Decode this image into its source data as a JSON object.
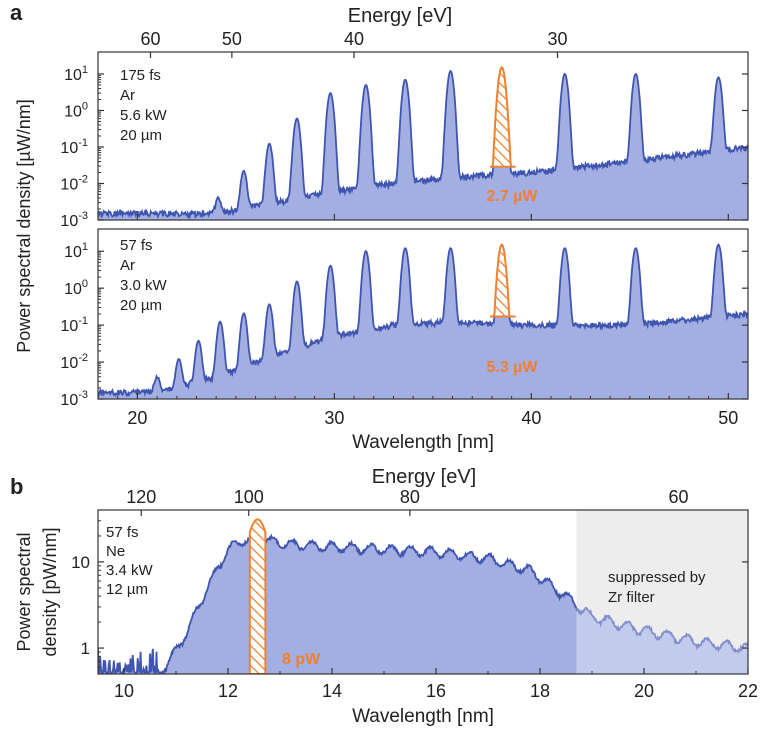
{
  "chart_data": [
    {
      "type": "area",
      "panel_label": "a",
      "top_axis_label": "Energy [eV]",
      "top_axis_ticks": [
        60,
        50,
        40,
        30
      ],
      "xlabel": "Wavelength [nm]",
      "ylabel": "Power spectral density [µW/nm]",
      "xlim": [
        18,
        51
      ],
      "xticks": [
        20,
        30,
        40,
        50
      ],
      "y_scale": "log",
      "ylim": [
        0.001,
        40
      ],
      "yticks": [
        {
          "base": "10",
          "exp": "1"
        },
        {
          "base": "10",
          "exp": "0"
        },
        {
          "base": "10",
          "exp": "-1"
        },
        {
          "base": "10",
          "exp": "-2"
        },
        {
          "base": "10",
          "exp": "-3"
        }
      ],
      "colors": {
        "spectrum": "#3f55b0",
        "fill": "#a3afe3",
        "highlight": "#f08030"
      },
      "subplots": [
        {
          "annotation": [
            "175 fs",
            "Ar",
            "5.6 kW",
            "20 µm"
          ],
          "highlight_label": "2.7 µW",
          "highlight_range": [
            37.9,
            39.2
          ],
          "baseline": [
            [
              18,
              0.0015
            ],
            [
              24,
              0.0015
            ],
            [
              27,
              0.003
            ],
            [
              30,
              0.006
            ],
            [
              33,
              0.01
            ],
            [
              36,
              0.015
            ],
            [
              40,
              0.02
            ],
            [
              45,
              0.04
            ],
            [
              51,
              0.1
            ]
          ],
          "peaks": [
            {
              "x": 24.1,
              "y": 0.0025
            },
            {
              "x": 25.4,
              "y": 0.02
            },
            {
              "x": 26.7,
              "y": 0.12
            },
            {
              "x": 28.1,
              "y": 0.6
            },
            {
              "x": 29.8,
              "y": 3.0
            },
            {
              "x": 31.6,
              "y": 5.0
            },
            {
              "x": 33.6,
              "y": 7.0
            },
            {
              "x": 35.9,
              "y": 12.0
            },
            {
              "x": 38.5,
              "y": 15.0
            },
            {
              "x": 41.7,
              "y": 10.0
            },
            {
              "x": 45.3,
              "y": 10.0
            },
            {
              "x": 49.5,
              "y": 8.0
            }
          ]
        },
        {
          "annotation": [
            "57 fs",
            "Ar",
            "3.0 kW",
            "20 µm"
          ],
          "highlight_label": "5.3 µW",
          "highlight_range": [
            37.9,
            39.2
          ],
          "baseline": [
            [
              18,
              0.0015
            ],
            [
              21,
              0.0015
            ],
            [
              24,
              0.004
            ],
            [
              27,
              0.015
            ],
            [
              30,
              0.05
            ],
            [
              33,
              0.1
            ],
            [
              36,
              0.12
            ],
            [
              40,
              0.1
            ],
            [
              45,
              0.1
            ],
            [
              51,
              0.2
            ]
          ],
          "peaks": [
            {
              "x": 21.0,
              "y": 0.0025
            },
            {
              "x": 22.1,
              "y": 0.01
            },
            {
              "x": 23.1,
              "y": 0.035
            },
            {
              "x": 24.2,
              "y": 0.12
            },
            {
              "x": 25.4,
              "y": 0.2
            },
            {
              "x": 26.7,
              "y": 0.35
            },
            {
              "x": 28.1,
              "y": 1.5
            },
            {
              "x": 29.8,
              "y": 4.0
            },
            {
              "x": 31.6,
              "y": 10.0
            },
            {
              "x": 33.6,
              "y": 12.0
            },
            {
              "x": 35.9,
              "y": 12.0
            },
            {
              "x": 38.5,
              "y": 15.0
            },
            {
              "x": 41.7,
              "y": 12.0
            },
            {
              "x": 45.3,
              "y": 12.0
            },
            {
              "x": 49.5,
              "y": 15.0
            }
          ]
        }
      ]
    },
    {
      "type": "area",
      "panel_label": "b",
      "top_axis_label": "Energy [eV]",
      "top_axis_ticks": [
        120,
        100,
        80,
        60
      ],
      "xlabel": "Wavelength [nm]",
      "ylabel_lines": [
        "Power spectral",
        "density [pW/nm]"
      ],
      "xlim": [
        9.5,
        22
      ],
      "xticks": [
        10,
        12,
        14,
        16,
        18,
        20,
        22
      ],
      "y_scale": "log",
      "ylim": [
        0.5,
        40
      ],
      "yticks": [
        "10",
        "1"
      ],
      "annotation": [
        "57 fs",
        "Ne",
        "3.4 kW",
        "12 µm"
      ],
      "shaded_region_label": [
        "suppressed by",
        "Zr filter"
      ],
      "shaded_region": [
        18.7,
        22
      ],
      "highlight_label": "8 pW",
      "highlight_range": [
        12.42,
        12.72
      ],
      "colors": {
        "spectrum": "#3f55b0",
        "fill": "#a3afe3",
        "highlight": "#f08030",
        "shade": "#e3e3e3"
      },
      "envelope": [
        [
          10.8,
          0.6
        ],
        [
          11.2,
          1.5
        ],
        [
          11.6,
          5
        ],
        [
          12.0,
          14
        ],
        [
          12.3,
          18
        ],
        [
          12.7,
          18
        ],
        [
          13.2,
          16
        ],
        [
          14.0,
          15
        ],
        [
          15.0,
          14
        ],
        [
          16.0,
          13
        ],
        [
          17.0,
          11
        ],
        [
          17.8,
          8
        ],
        [
          18.5,
          4
        ],
        [
          19.0,
          2.3
        ],
        [
          20.0,
          1.6
        ],
        [
          21.0,
          1.2
        ],
        [
          22.0,
          1.0
        ]
      ]
    }
  ]
}
